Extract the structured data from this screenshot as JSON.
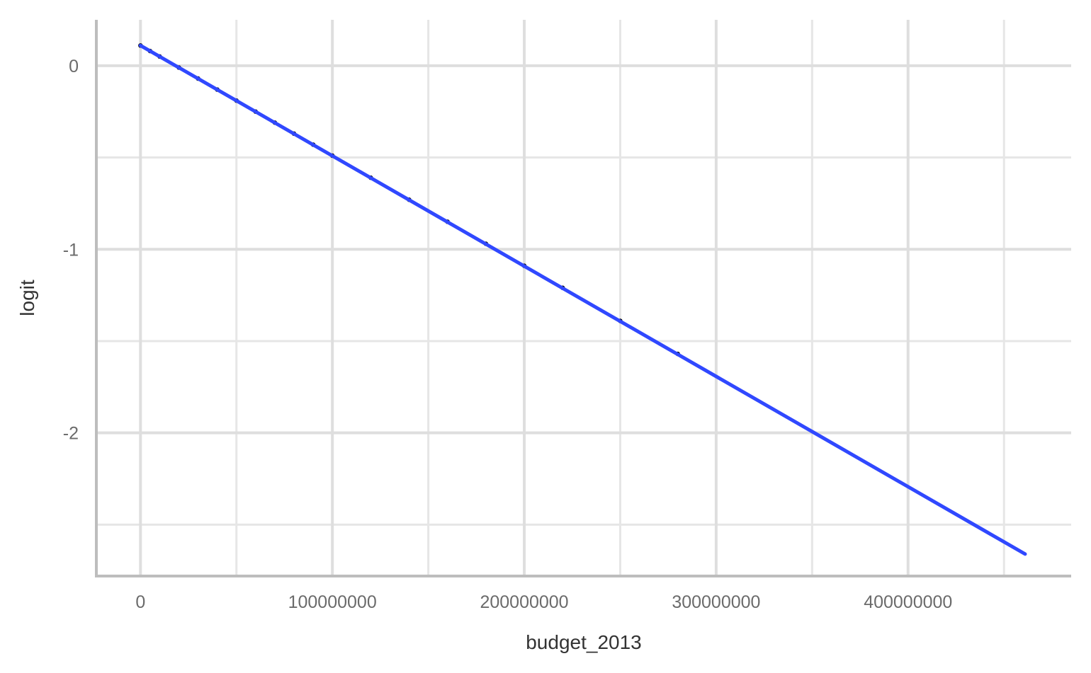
{
  "chart_data": {
    "type": "line",
    "title": "",
    "xlabel": "budget_2013",
    "ylabel": "logit",
    "xlim": [
      -23000000,
      485000000
    ],
    "ylim": [
      -2.78,
      0.25
    ],
    "x_ticks": [
      0,
      100000000,
      200000000,
      300000000,
      400000000
    ],
    "x_tick_labels": [
      "0",
      "100000000",
      "200000000",
      "300000000",
      "400000000"
    ],
    "x_minor_ticks": [
      50000000,
      150000000,
      250000000,
      350000000,
      450000000
    ],
    "y_ticks": [
      0,
      -1,
      -2
    ],
    "y_tick_labels": [
      "0",
      "-1",
      "-2"
    ],
    "y_minor_ticks": [
      -0.5,
      -1.5,
      -2.5
    ],
    "grid": true,
    "legend": "none",
    "series": [
      {
        "role": "points",
        "color": "#000000",
        "x": [
          0,
          5000000,
          10000000,
          20000000,
          30000000,
          40000000,
          50000000,
          60000000,
          70000000,
          80000000,
          90000000,
          100000000,
          120000000,
          140000000,
          160000000,
          180000000,
          200000000,
          220000000,
          250000000,
          280000000
        ],
        "y": [
          0.11,
          0.08,
          0.05,
          -0.01,
          -0.07,
          -0.13,
          -0.19,
          -0.25,
          -0.31,
          -0.37,
          -0.43,
          -0.49,
          -0.61,
          -0.73,
          -0.85,
          -0.97,
          -1.09,
          -1.21,
          -1.39,
          -1.57
        ]
      },
      {
        "role": "fitted-line",
        "color": "#3048ff",
        "x": [
          0,
          461000000
        ],
        "y": [
          0.11,
          -2.66
        ]
      }
    ]
  }
}
